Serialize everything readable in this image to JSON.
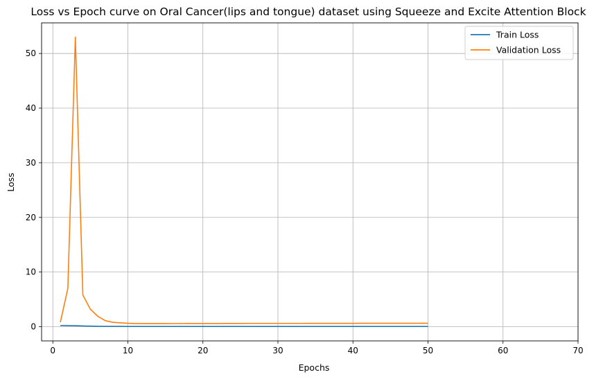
{
  "chart_data": {
    "type": "line",
    "title": "Loss vs Epoch curve on Oral Cancer(lips and tongue) dataset using Squeeze and Excite Attention Block",
    "xlabel": "Epochs",
    "ylabel": "Loss",
    "xlim": [
      -1.5,
      70
    ],
    "ylim": [
      -2.6,
      55.6
    ],
    "xticks": [
      0,
      10,
      20,
      30,
      40,
      50,
      60,
      70
    ],
    "yticks": [
      0,
      10,
      20,
      30,
      40,
      50
    ],
    "grid": true,
    "legend_position": "upper-right",
    "series": [
      {
        "name": "Train Loss",
        "color": "#1f77b4",
        "x": [
          1,
          2,
          3,
          4,
          5,
          6,
          7,
          8,
          9,
          10,
          11,
          12,
          13,
          14,
          15,
          16,
          17,
          18,
          19,
          20,
          21,
          22,
          23,
          24,
          25,
          26,
          27,
          28,
          29,
          30,
          31,
          32,
          33,
          34,
          35,
          36,
          37,
          38,
          39,
          40,
          41,
          42,
          43,
          44,
          45,
          46,
          47,
          48,
          49,
          50
        ],
        "values": [
          0.22,
          0.2,
          0.18,
          0.14,
          0.1,
          0.07,
          0.06,
          0.05,
          0.05,
          0.04,
          0.04,
          0.04,
          0.04,
          0.04,
          0.04,
          0.04,
          0.04,
          0.04,
          0.04,
          0.04,
          0.04,
          0.04,
          0.04,
          0.04,
          0.04,
          0.04,
          0.04,
          0.04,
          0.04,
          0.04,
          0.04,
          0.04,
          0.04,
          0.04,
          0.04,
          0.04,
          0.04,
          0.04,
          0.04,
          0.04,
          0.04,
          0.04,
          0.04,
          0.04,
          0.04,
          0.04,
          0.04,
          0.04,
          0.04,
          0.04
        ]
      },
      {
        "name": "Validation Loss",
        "color": "#ff7f0e",
        "x": [
          1,
          2,
          3,
          4,
          5,
          6,
          7,
          8,
          9,
          10,
          11,
          12,
          13,
          14,
          15,
          16,
          17,
          18,
          19,
          20,
          21,
          22,
          23,
          24,
          25,
          26,
          27,
          28,
          29,
          30,
          31,
          32,
          33,
          34,
          35,
          36,
          37,
          38,
          39,
          40,
          41,
          42,
          43,
          44,
          45,
          46,
          47,
          48,
          49,
          50
        ],
        "values": [
          0.8,
          7.0,
          53.0,
          5.8,
          3.2,
          1.9,
          1.1,
          0.8,
          0.7,
          0.62,
          0.58,
          0.56,
          0.56,
          0.56,
          0.56,
          0.57,
          0.57,
          0.58,
          0.58,
          0.58,
          0.58,
          0.58,
          0.59,
          0.59,
          0.59,
          0.6,
          0.6,
          0.6,
          0.6,
          0.6,
          0.6,
          0.6,
          0.6,
          0.61,
          0.61,
          0.61,
          0.61,
          0.61,
          0.61,
          0.61,
          0.62,
          0.62,
          0.62,
          0.62,
          0.62,
          0.62,
          0.62,
          0.62,
          0.63,
          0.63
        ]
      }
    ]
  }
}
